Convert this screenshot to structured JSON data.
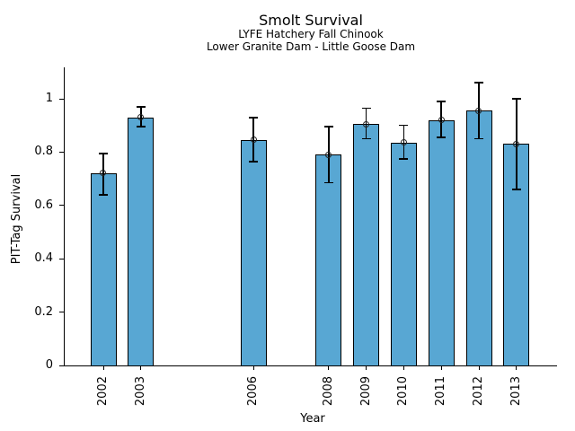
{
  "chart_data": {
    "type": "bar",
    "title": "Smolt Survival",
    "subtitle1": "LYFE Hatchery Fall Chinook",
    "subtitle2": "Lower Granite Dam - Little Goose Dam",
    "xlabel": "Year",
    "ylabel": "PIT-Tag Survival",
    "categories": [
      2002,
      2003,
      2006,
      2008,
      2009,
      2010,
      2011,
      2012,
      2013
    ],
    "xtick_labels": [
      "2002",
      "2003",
      "2006",
      "2008",
      "2009",
      "2010",
      "2011",
      "2012",
      "2013"
    ],
    "values": [
      0.72,
      0.93,
      0.845,
      0.79,
      0.905,
      0.835,
      0.92,
      0.955,
      0.83
    ],
    "error_low": [
      0.64,
      0.895,
      0.765,
      0.685,
      0.85,
      0.775,
      0.855,
      0.85,
      0.66
    ],
    "error_high": [
      0.795,
      0.97,
      0.93,
      0.895,
      0.965,
      0.9,
      0.99,
      1.06,
      1.0
    ],
    "yticks": [
      0,
      0.2,
      0.4,
      0.6,
      0.8,
      1
    ],
    "ytick_labels": [
      "0",
      "0.2",
      "0.4",
      "0.6",
      "0.8",
      "1"
    ],
    "ylim": [
      0,
      1.12
    ],
    "xlim": [
      2001,
      2014.1
    ],
    "x_tick_rotation_deg": 90,
    "grid": false,
    "legend": null,
    "marker": "open-circle",
    "bar_color": "#58A7D3",
    "bar_edge_color": "#000000",
    "errorbar_color": "#000000",
    "axis_color": "#000000",
    "background_color": "#ffffff"
  }
}
